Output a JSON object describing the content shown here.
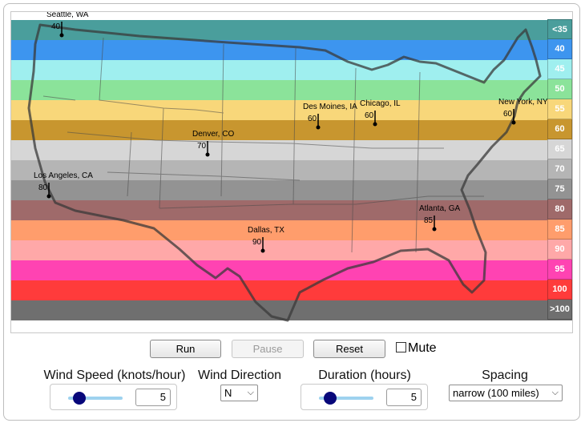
{
  "bands": [
    {
      "label": "<35",
      "color": "#4a9e9c"
    },
    {
      "label": "40",
      "color": "#3d95ef"
    },
    {
      "label": "45",
      "color": "#9fefef"
    },
    {
      "label": "50",
      "color": "#8be39a"
    },
    {
      "label": "55",
      "color": "#f8d77a"
    },
    {
      "label": "60",
      "color": "#c8962f"
    },
    {
      "label": "65",
      "color": "#d6d6d6"
    },
    {
      "label": "70",
      "color": "#b5b5b5"
    },
    {
      "label": "75",
      "color": "#939393"
    },
    {
      "label": "80",
      "color": "#9f6a6a"
    },
    {
      "label": "85",
      "color": "#ff9d6c"
    },
    {
      "label": "90",
      "color": "#ffa8a8"
    },
    {
      "label": "95",
      "color": "#ff43b2"
    },
    {
      "label": "100",
      "color": "#ff3b3b"
    },
    {
      "label": ">100",
      "color": "#6f6f6f"
    }
  ],
  "cities": [
    {
      "name": "Seattle, WA",
      "value": "40"
    },
    {
      "name": "Denver, CO",
      "value": "70"
    },
    {
      "name": "Los Angeles, CA",
      "value": "80"
    },
    {
      "name": "Des Moines, IA",
      "value": "60"
    },
    {
      "name": "Chicago, IL",
      "value": "60"
    },
    {
      "name": "New York, NY",
      "value": "60"
    },
    {
      "name": "Dallas, TX",
      "value": "90"
    },
    {
      "name": "Atlanta, GA",
      "value": "85"
    }
  ],
  "buttons": {
    "run": "Run",
    "pause": "Pause",
    "reset": "Reset",
    "mute": "Mute"
  },
  "controls": {
    "wind_speed_label": "Wind Speed (knots/hour)",
    "wind_speed_value": "5",
    "wind_speed_level": 0.2,
    "wind_direction_label": "Wind Direction",
    "wind_direction_value": "N",
    "duration_label": "Duration (hours)",
    "duration_value": "5",
    "duration_level": 0.2,
    "spacing_label": "Spacing",
    "spacing_value": "narrow (100 miles)"
  }
}
